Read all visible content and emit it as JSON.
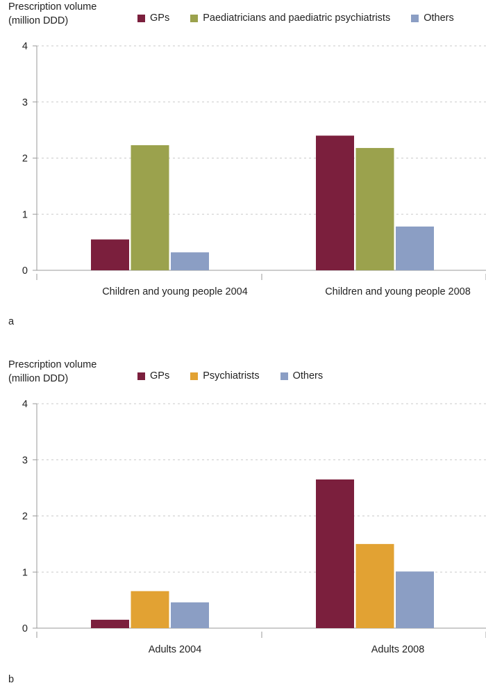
{
  "chart_data": [
    {
      "type": "bar",
      "panel_label": "a",
      "ylabel_line1": "Prescription volume",
      "ylabel_line2": "(million DDD)",
      "categories": [
        "Children and young people 2004",
        "Children and young people 2008"
      ],
      "series": [
        {
          "name": "GPs",
          "color": "#7b1f3d",
          "values": [
            0.55,
            2.4
          ]
        },
        {
          "name": "Paediatricians and paediatric psychiatrists",
          "color": "#9ba24d",
          "values": [
            2.23,
            2.18
          ]
        },
        {
          "name": "Others",
          "color": "#8b9ec4",
          "values": [
            0.32,
            0.78
          ]
        }
      ],
      "yticks": [
        0,
        1,
        2,
        3,
        4
      ],
      "ylim": [
        0,
        4
      ],
      "grid": true
    },
    {
      "type": "bar",
      "panel_label": "b",
      "ylabel_line1": "Prescription volume",
      "ylabel_line2": "(million DDD)",
      "categories": [
        "Adults 2004",
        "Adults 2008"
      ],
      "series": [
        {
          "name": "GPs",
          "color": "#7b1f3d",
          "values": [
            0.15,
            2.65
          ]
        },
        {
          "name": "Psychiatrists",
          "color": "#e2a233",
          "values": [
            0.66,
            1.5
          ]
        },
        {
          "name": "Others",
          "color": "#8b9ec4",
          "values": [
            0.46,
            1.01
          ]
        }
      ],
      "yticks": [
        0,
        1,
        2,
        3,
        4
      ],
      "ylim": [
        0,
        4
      ],
      "grid": true
    }
  ]
}
